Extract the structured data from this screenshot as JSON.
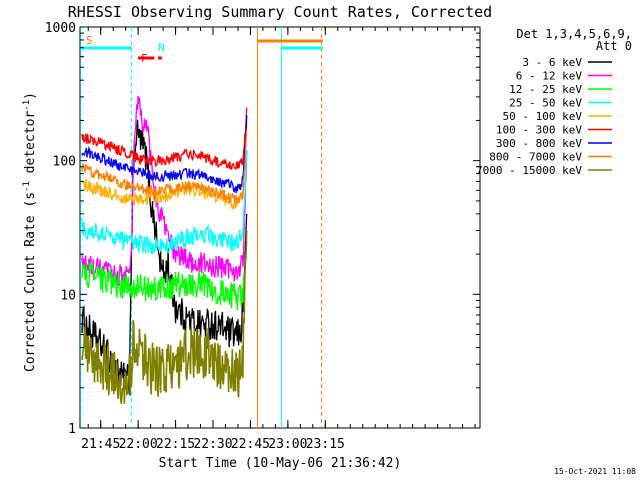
{
  "chart_data": {
    "type": "line",
    "title": "RHESSI Observing Summary Count Rates, Corrected",
    "xlabel": "Start Time (10-May-06 21:36:42)",
    "ylabel": "Corrected Count Rate (s^-1 detector^-1)",
    "y_scale": "log",
    "ylim": [
      1,
      1000
    ],
    "y_ticks": [
      "1",
      "10",
      "100",
      "1000"
    ],
    "x_minutes_range": [
      36.7,
      197.0
    ],
    "x_ticks": [
      {
        "label": "21:45",
        "minutes": 45
      },
      {
        "label": "22:00",
        "minutes": 60
      },
      {
        "label": "22:15",
        "minutes": 75
      },
      {
        "label": "22:30",
        "minutes": 90
      },
      {
        "label": "22:45",
        "minutes": 105
      },
      {
        "label": "23:00",
        "minutes": 120
      },
      {
        "label": "23:15",
        "minutes": 135
      }
    ],
    "legend_header": [
      "Det 1,3,4,5,6,9,",
      "Att 0"
    ],
    "legend_position": "right",
    "flags": {
      "S": "S",
      "N": "N",
      "F": "F"
    },
    "timestamp": "15-Oct-2021 11:08",
    "series": [
      {
        "name": "3 - 6 keV",
        "color": "#000000",
        "x": [
          37.5,
          40,
          45,
          50,
          53,
          55,
          56.5,
          57.3,
          58,
          59,
          60,
          61,
          62,
          63,
          64,
          65,
          66,
          67,
          68,
          70,
          71,
          72,
          73,
          74,
          75,
          78,
          80,
          85,
          90,
          95,
          97,
          100,
          101,
          102,
          103,
          103.5
        ],
        "y": [
          6.5,
          5.5,
          4.2,
          3.0,
          2.5,
          2.3,
          2.3,
          22,
          80,
          150,
          160,
          140,
          130,
          110,
          80,
          50,
          40,
          30,
          21,
          14,
          15,
          18,
          12,
          10,
          8,
          7,
          6.5,
          6,
          6,
          5.5,
          5,
          5,
          5,
          8,
          25,
          40
        ]
      },
      {
        "name": "6 - 12 keV",
        "color": "#ff00ff",
        "x": [
          37.5,
          40,
          45,
          50,
          55,
          56.5,
          57.3,
          58,
          59,
          60,
          61,
          62,
          63,
          64,
          65,
          66,
          67,
          68,
          69,
          70,
          72,
          75,
          80,
          85,
          90,
          95,
          100,
          102,
          103,
          103.5
        ],
        "y": [
          17,
          16,
          15,
          14,
          14,
          14,
          20,
          80,
          200,
          280,
          220,
          180,
          200,
          150,
          100,
          70,
          55,
          45,
          40,
          35,
          26,
          20,
          18,
          17,
          16,
          16,
          15,
          17,
          60,
          120
        ]
      },
      {
        "name": "12 - 25 keV",
        "color": "#00ff00",
        "x": [
          37.5,
          40,
          45,
          50,
          55,
          60,
          65,
          70,
          75,
          80,
          85,
          90,
          95,
          100,
          102,
          103,
          103.5
        ],
        "y": [
          15,
          14,
          13,
          12,
          11.5,
          11.5,
          11,
          11,
          12,
          12,
          12,
          11,
          10,
          9.5,
          10,
          15,
          25
        ]
      },
      {
        "name": "25 - 50 keV",
        "color": "#00ffff",
        "x": [
          37.5,
          40,
          45,
          50,
          55,
          60,
          65,
          70,
          75,
          80,
          85,
          90,
          95,
          100,
          102,
          103,
          103.5
        ],
        "y": [
          32,
          30,
          29,
          27,
          25,
          24,
          23,
          23,
          24,
          27,
          29,
          27,
          25,
          24,
          30,
          60,
          120
        ]
      },
      {
        "name": "50 - 100 keV",
        "color": "#ffb000",
        "x": [
          37.5,
          40,
          45,
          50,
          55,
          60,
          65,
          70,
          75,
          80,
          85,
          90,
          95,
          100,
          102,
          103,
          103.5
        ],
        "y": [
          68,
          65,
          60,
          55,
          52,
          52,
          52,
          54,
          58,
          62,
          60,
          55,
          50,
          47,
          55,
          120,
          190
        ]
      },
      {
        "name": "100 - 300 keV",
        "color": "#ff0000",
        "x": [
          37.5,
          40,
          45,
          50,
          55,
          60,
          65,
          70,
          75,
          80,
          85,
          90,
          95,
          100,
          102,
          103,
          103.5
        ],
        "y": [
          150,
          145,
          135,
          125,
          115,
          105,
          100,
          100,
          105,
          112,
          110,
          100,
          95,
          90,
          100,
          170,
          250
        ]
      },
      {
        "name": "300 - 800 keV",
        "color": "#0000ff",
        "x": [
          37.5,
          40,
          45,
          50,
          55,
          60,
          65,
          70,
          75,
          80,
          85,
          90,
          95,
          100,
          102,
          103,
          103.5
        ],
        "y": [
          120,
          115,
          105,
          95,
          88,
          82,
          78,
          76,
          78,
          80,
          78,
          72,
          68,
          62,
          70,
          140,
          220
        ]
      },
      {
        "name": "800 - 7000 keV",
        "color": "#ff8000",
        "x": [
          37.5,
          40,
          45,
          50,
          55,
          60,
          65,
          70,
          75,
          80,
          85,
          90,
          95,
          100,
          102,
          103,
          103.5
        ],
        "y": [
          90,
          85,
          78,
          72,
          66,
          62,
          60,
          60,
          62,
          65,
          63,
          58,
          55,
          50,
          56,
          110,
          170
        ]
      },
      {
        "name": "7000 - 15000 keV",
        "color": "#808000",
        "x": [
          37.5,
          40,
          45,
          50,
          52,
          55,
          56.5,
          57.3,
          58,
          60,
          62,
          65,
          70,
          75,
          80,
          85,
          90,
          95,
          100,
          102,
          103,
          103.5
        ],
        "y": [
          4.5,
          3.5,
          3.0,
          2.6,
          2.2,
          2.2,
          2.3,
          3.0,
          5.0,
          4.0,
          3.5,
          2.8,
          2.6,
          2.9,
          3.6,
          3.8,
          3.4,
          2.8,
          2.4,
          3.0,
          15,
          30
        ]
      }
    ],
    "vertical_markers": [
      {
        "minutes": 57.3,
        "color": "#00ffff",
        "style": "dashed"
      },
      {
        "minutes": 107.8,
        "color": "#ff8000",
        "style": "solid"
      },
      {
        "minutes": 117.5,
        "color": "#00ffff",
        "style": "solid"
      },
      {
        "minutes": 133.5,
        "color": "#ff8000",
        "style": "dashed"
      },
      {
        "minutes": 37.0,
        "color": "#00ffff",
        "style": "dashed"
      }
    ],
    "state_bars": [
      {
        "flag": "S",
        "color": "#00ffff",
        "x0": 37.0,
        "x1": 57.3,
        "level": 0
      },
      {
        "flag": "N",
        "color": "#ff8000",
        "x0": 107.8,
        "x1": 134.0,
        "level": 1
      },
      {
        "flag": "N",
        "color": "#00ffff",
        "x0": 117.5,
        "x1": 134.0,
        "level": 0
      },
      {
        "flag": "F",
        "color": "#ff0000",
        "x0": 60.0,
        "x1": 66.5,
        "level": 2
      },
      {
        "flag": "F",
        "color": "#ff0000",
        "x0": 68.0,
        "x1": 69.5,
        "level": 2
      }
    ],
    "grid": false
  }
}
